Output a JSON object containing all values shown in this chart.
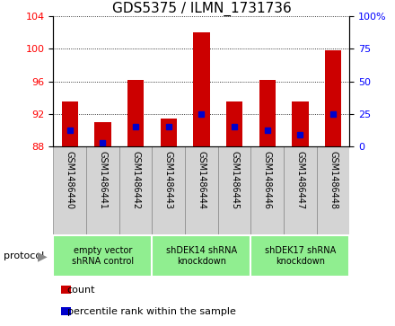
{
  "title": "GDS5375 / ILMN_1731736",
  "samples": [
    "GSM1486440",
    "GSM1486441",
    "GSM1486442",
    "GSM1486443",
    "GSM1486444",
    "GSM1486445",
    "GSM1486446",
    "GSM1486447",
    "GSM1486448"
  ],
  "bar_base": 88,
  "bar_tops": [
    93.5,
    91.0,
    96.2,
    91.5,
    102.0,
    93.5,
    96.2,
    93.5,
    99.8
  ],
  "blue_positions": [
    90.0,
    88.5,
    90.5,
    90.5,
    92.0,
    90.5,
    90.0,
    89.5,
    92.0
  ],
  "ylim_left": [
    88,
    104
  ],
  "ylim_right": [
    0,
    100
  ],
  "yticks_left": [
    88,
    92,
    96,
    100,
    104
  ],
  "yticks_right": [
    0,
    25,
    50,
    75,
    100
  ],
  "bar_color": "#cc0000",
  "blue_color": "#0000cc",
  "groups": [
    {
      "label": "empty vector\nshRNA control",
      "start": 0,
      "end": 2,
      "color": "#90ee90"
    },
    {
      "label": "shDEK14 shRNA\nknockdown",
      "start": 3,
      "end": 5,
      "color": "#90ee90"
    },
    {
      "label": "shDEK17 shRNA\nknockdown",
      "start": 6,
      "end": 8,
      "color": "#90ee90"
    }
  ],
  "protocol_label": "protocol",
  "legend_count": "count",
  "legend_pct": "percentile rank within the sample",
  "title_fontsize": 11,
  "tick_fontsize": 8,
  "sample_fontsize": 7,
  "group_fontsize": 7,
  "legend_fontsize": 8
}
